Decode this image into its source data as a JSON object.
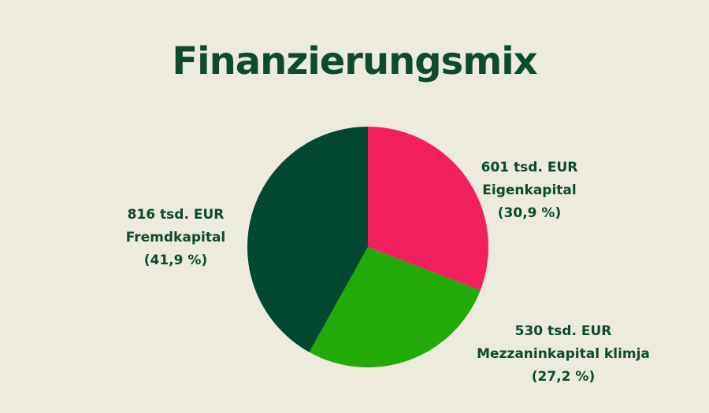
{
  "chart_data": {
    "type": "pie",
    "title": "Finanzierungsmix",
    "slices": [
      {
        "value_label": "601 tsd. EUR",
        "name": "Eigenkapital",
        "value": 601,
        "percent_label": "(30,9 %)",
        "percent": 30.9,
        "color": "#f41f5e"
      },
      {
        "value_label": "530 tsd. EUR",
        "name": "Mezzaninkapital klimja",
        "value": 530,
        "percent_label": "(27,2 %)",
        "percent": 27.2,
        "color": "#22aa08"
      },
      {
        "value_label": "816 tsd. EUR",
        "name": "Fremdkapital",
        "value": 816,
        "percent_label": "(41,9 %)",
        "percent": 41.9,
        "color": "#024830"
      }
    ],
    "start": "top",
    "direction": "clockwise",
    "legend": "none"
  },
  "colors": {
    "background": "#ecebdd",
    "text": "#0e4a2c"
  }
}
